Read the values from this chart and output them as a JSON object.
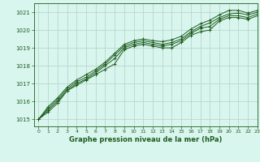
{
  "title": "Graphe pression niveau de la mer (hPa)",
  "bg_color": "#d8f5ee",
  "grid_color": "#b8d8cc",
  "line_color": "#1e5c1e",
  "xlim": [
    -0.5,
    23
  ],
  "ylim": [
    1014.6,
    1021.5
  ],
  "yticks": [
    1015,
    1016,
    1017,
    1018,
    1019,
    1020,
    1021
  ],
  "xticks": [
    0,
    1,
    2,
    3,
    4,
    5,
    6,
    7,
    8,
    9,
    10,
    11,
    12,
    13,
    14,
    15,
    16,
    17,
    18,
    19,
    20,
    21,
    22,
    23
  ],
  "series": [
    [
      1015.0,
      1015.4,
      1015.9,
      1016.6,
      1016.9,
      1017.2,
      1017.5,
      1017.8,
      1018.1,
      1018.9,
      1019.1,
      1019.2,
      1019.1,
      1019.0,
      1019.0,
      1019.3,
      1019.7,
      1019.9,
      1020.0,
      1020.5,
      1020.7,
      1020.7,
      1020.6,
      1020.8
    ],
    [
      1015.0,
      1015.5,
      1016.0,
      1016.6,
      1017.0,
      1017.25,
      1017.6,
      1018.0,
      1018.4,
      1019.0,
      1019.2,
      1019.3,
      1019.2,
      1019.1,
      1019.2,
      1019.4,
      1019.8,
      1020.1,
      1020.2,
      1020.6,
      1020.8,
      1020.8,
      1020.7,
      1020.9
    ],
    [
      1015.0,
      1015.6,
      1016.1,
      1016.7,
      1017.1,
      1017.35,
      1017.7,
      1018.1,
      1018.6,
      1019.1,
      1019.3,
      1019.4,
      1019.3,
      1019.2,
      1019.3,
      1019.5,
      1019.9,
      1020.2,
      1020.4,
      1020.7,
      1020.9,
      1020.95,
      1020.85,
      1021.0
    ],
    [
      1015.0,
      1015.7,
      1016.2,
      1016.8,
      1017.2,
      1017.5,
      1017.8,
      1018.2,
      1018.7,
      1019.2,
      1019.4,
      1019.5,
      1019.4,
      1019.35,
      1019.45,
      1019.65,
      1020.05,
      1020.35,
      1020.55,
      1020.85,
      1021.1,
      1021.1,
      1020.95,
      1021.1
    ]
  ]
}
